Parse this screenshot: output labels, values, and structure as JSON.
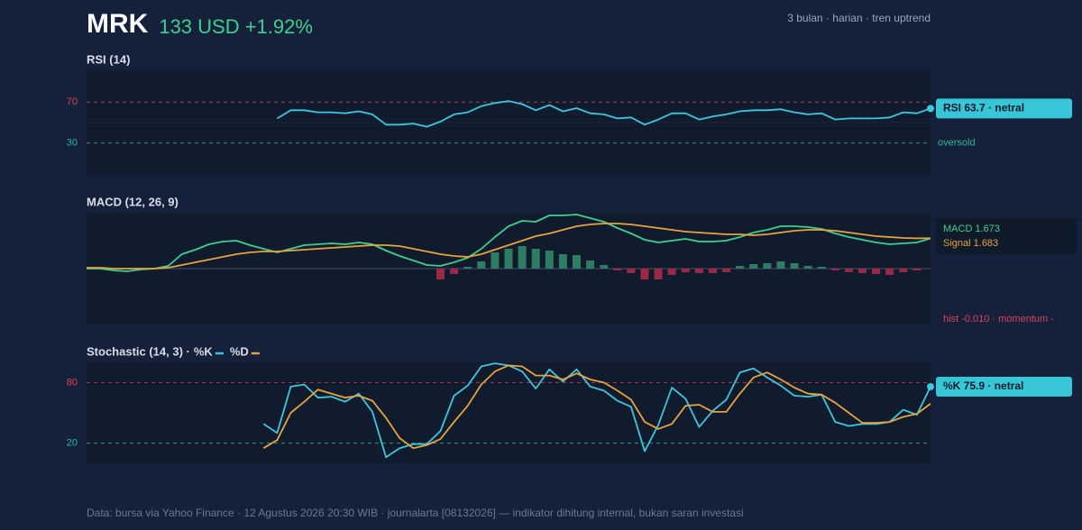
{
  "header": {
    "ticker": "MRK",
    "price": "133 USD +1.92%",
    "meta": "3 bulan · harian · tren uptrend"
  },
  "footer": "Data: bursa via Yahoo Finance · 12 Agustus 2026 20:30 WIB · journalarta [08132026] — indikator dihitung internal, bukan saran investasi",
  "chart_data": [
    {
      "type": "line",
      "title": "RSI (14)",
      "ylim": [
        0,
        100
      ],
      "yticks": [
        70,
        30
      ],
      "tick_colors": [
        "#d9425b",
        "#2bb894"
      ],
      "midline": 50,
      "series": [
        {
          "name": "RSI",
          "color": "#3ec6dc",
          "values": [
            null,
            null,
            null,
            null,
            null,
            null,
            null,
            null,
            null,
            null,
            null,
            null,
            null,
            null,
            54,
            62,
            62,
            60,
            60,
            59,
            61,
            58,
            48,
            48,
            49,
            46,
            51,
            58,
            60,
            66,
            69,
            71,
            68,
            62,
            67,
            61,
            64,
            59,
            58,
            54,
            55,
            48,
            53,
            59,
            59,
            53,
            56,
            58,
            61,
            62,
            62,
            63,
            60,
            58,
            59,
            53,
            54,
            54,
            54,
            55,
            60,
            59,
            63.7
          ]
        }
      ],
      "annotations": [
        "RSI 63.7 · netral",
        "oversold"
      ]
    },
    {
      "type": "line",
      "title": "MACD (12, 26, 9)",
      "ylim": [
        -3.1,
        3.1
      ],
      "series": [
        {
          "name": "MACD",
          "color": "#3ecf8e",
          "values": [
            0,
            0,
            -0.1,
            -0.15,
            -0.05,
            0,
            0.15,
            0.8,
            1.05,
            1.35,
            1.5,
            1.55,
            1.3,
            1.1,
            0.9,
            1.1,
            1.3,
            1.35,
            1.4,
            1.35,
            1.45,
            1.35,
            1,
            0.7,
            0.45,
            0.2,
            0.15,
            0.35,
            0.6,
            1.1,
            1.75,
            2.35,
            2.65,
            2.6,
            2.95,
            2.95,
            3,
            2.8,
            2.6,
            2.25,
            1.95,
            1.6,
            1.45,
            1.55,
            1.65,
            1.5,
            1.5,
            1.55,
            1.75,
            2,
            2.15,
            2.35,
            2.35,
            2.3,
            2.2,
            1.95,
            1.75,
            1.6,
            1.45,
            1.35,
            1.4,
            1.45,
            1.673
          ]
        },
        {
          "name": "Signal",
          "color": "#e8a33d",
          "values": [
            0.05,
            0.05,
            0,
            0,
            0,
            0,
            0.05,
            0.2,
            0.35,
            0.5,
            0.65,
            0.8,
            0.9,
            0.95,
            0.95,
            1,
            1.05,
            1.1,
            1.15,
            1.2,
            1.25,
            1.3,
            1.3,
            1.25,
            1.1,
            0.95,
            0.8,
            0.7,
            0.65,
            0.8,
            1.05,
            1.3,
            1.55,
            1.8,
            1.95,
            2.15,
            2.35,
            2.45,
            2.5,
            2.5,
            2.45,
            2.35,
            2.25,
            2.15,
            2.05,
            2,
            1.95,
            1.9,
            1.9,
            1.85,
            1.9,
            2,
            2.1,
            2.15,
            2.15,
            2.1,
            2,
            1.9,
            1.8,
            1.75,
            1.7,
            1.68,
            1.683
          ]
        }
      ],
      "histogram": {
        "pos_color": "#2e7d62",
        "neg_color": "#9b2945",
        "values": [
          null,
          null,
          null,
          null,
          null,
          null,
          null,
          null,
          null,
          null,
          null,
          null,
          null,
          null,
          null,
          null,
          null,
          null,
          null,
          null,
          null,
          null,
          null,
          null,
          null,
          null,
          -0.6,
          -0.3,
          0.1,
          0.4,
          0.9,
          1.1,
          1.25,
          1.1,
          1,
          0.8,
          0.75,
          0.45,
          0.2,
          -0.1,
          -0.25,
          -0.6,
          -0.6,
          -0.35,
          -0.2,
          -0.25,
          -0.25,
          -0.2,
          0.15,
          0.25,
          0.3,
          0.4,
          0.3,
          0.15,
          0.1,
          -0.1,
          -0.2,
          -0.25,
          -0.3,
          -0.35,
          -0.2,
          -0.1,
          -0.01
        ]
      },
      "annotations": [
        "hist -0.010 · momentum -"
      ]
    },
    {
      "type": "line",
      "title": "Stochastic (14, 3) ·",
      "ylim": [
        0,
        100
      ],
      "yticks": [
        80,
        20
      ],
      "tick_colors": [
        "#d9425b",
        "#2bb894"
      ],
      "series": [
        {
          "name": "%K",
          "color": "#3ec6dc",
          "values": [
            null,
            null,
            null,
            null,
            null,
            null,
            null,
            null,
            null,
            null,
            null,
            null,
            null,
            39,
            30,
            76,
            78,
            65,
            66,
            61,
            69,
            51,
            6,
            15,
            19,
            19,
            32,
            67,
            77,
            96,
            99,
            97,
            91,
            74,
            93,
            81,
            93,
            76,
            72,
            62,
            56,
            12,
            38,
            75,
            64,
            36,
            52,
            63,
            90,
            94,
            85,
            77,
            67,
            66,
            68,
            41,
            37,
            39,
            39,
            41,
            53,
            48,
            75.9
          ]
        },
        {
          "name": "%D",
          "color": "#e8a33d",
          "values": [
            null,
            null,
            null,
            null,
            null,
            null,
            null,
            null,
            null,
            null,
            null,
            null,
            null,
            15,
            23,
            50,
            61,
            73,
            69,
            65,
            67,
            62,
            45,
            25,
            15,
            18,
            24,
            41,
            57,
            78,
            91,
            97,
            96,
            87,
            87,
            83,
            89,
            83,
            80,
            72,
            63,
            41,
            34,
            39,
            57,
            58,
            51,
            51,
            69,
            85,
            90,
            83,
            75,
            69,
            68,
            60,
            50,
            40,
            40,
            41,
            46,
            49,
            59
          ]
        }
      ],
      "annotations": [
        "%K 75.9 · netral"
      ]
    }
  ]
}
